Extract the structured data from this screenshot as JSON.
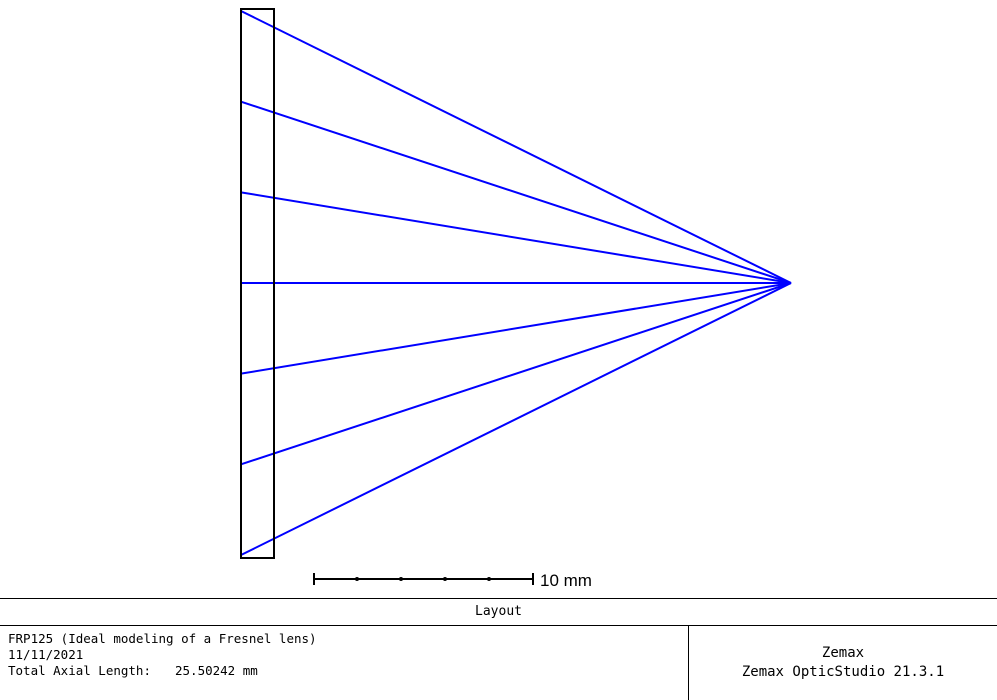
{
  "layout": {
    "ray_color": "#0000ff",
    "ray_count": 7,
    "scale_bar_label": "10 mm"
  },
  "footer": {
    "title": "Layout",
    "description": "FRP125 (Ideal modeling of a Fresnel lens)",
    "date": "11/11/2021",
    "total_axial_length_label": "Total Axial Length:",
    "total_axial_length_value": "25.50242 mm",
    "company": "Zemax",
    "software": "Zemax OpticStudio 21.3.1"
  }
}
